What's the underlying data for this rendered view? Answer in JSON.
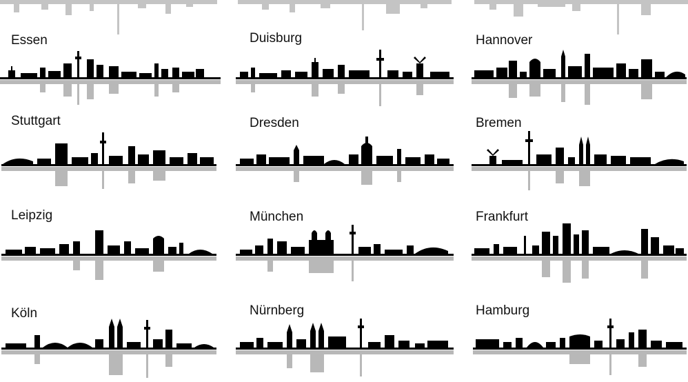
{
  "colors": {
    "silhouette": "#000000",
    "reflection": "#b8b8b8",
    "background": "#ffffff"
  },
  "cities": [
    {
      "id": "essen",
      "name": "Essen"
    },
    {
      "id": "duisburg",
      "name": "Duisburg"
    },
    {
      "id": "hannover",
      "name": "Hannover"
    },
    {
      "id": "stuttgart",
      "name": "Stuttgart"
    },
    {
      "id": "dresden",
      "name": "Dresden"
    },
    {
      "id": "bremen",
      "name": "Bremen"
    },
    {
      "id": "leipzig",
      "name": "Leipzig"
    },
    {
      "id": "muenchen",
      "name": "München"
    },
    {
      "id": "frankfurt",
      "name": "Frankfurt"
    },
    {
      "id": "koeln",
      "name": "Köln"
    },
    {
      "id": "nuernberg",
      "name": "Nürnberg"
    },
    {
      "id": "hamburg",
      "name": "Hamburg"
    }
  ]
}
